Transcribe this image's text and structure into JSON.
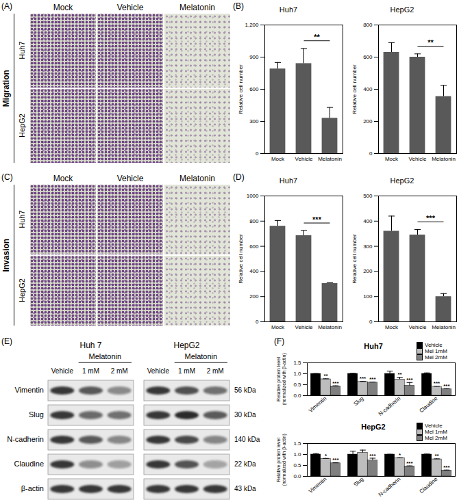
{
  "chart_data": [
    {
      "type": "bar",
      "title": "Huh7",
      "categories": [
        "Mock",
        "Vehicle",
        "Melatonin"
      ],
      "values": [
        790,
        840,
        330
      ],
      "errors": [
        60,
        140,
        100
      ],
      "color": "#595959",
      "y_label": "Relative cell number",
      "ylim": [
        0,
        1200
      ],
      "yticks": [
        0,
        300,
        600,
        900,
        {
          "value": 1200,
          "label": "1,200"
        }
      ],
      "significance": [
        {
          "from": "Vehicle",
          "to": "Melatonin",
          "label": "**"
        }
      ]
    },
    {
      "type": "bar",
      "title": "HepG2",
      "categories": [
        "Mock",
        "Vehicle",
        "Melatonin"
      ],
      "values": [
        630,
        600,
        355
      ],
      "errors": [
        60,
        20,
        70
      ],
      "color": "#595959",
      "y_label": "Relative cell number",
      "ylim": [
        0,
        800
      ],
      "yticks": [
        0,
        200,
        400,
        600,
        800
      ],
      "significance": [
        {
          "from": "Vehicle",
          "to": "Melatonin",
          "label": "**"
        }
      ]
    },
    {
      "type": "bar",
      "title": "Huh7",
      "categories": [
        "Mock",
        "Vehicle",
        "Melatonin"
      ],
      "values": [
        760,
        685,
        305
      ],
      "errors": [
        45,
        40,
        5
      ],
      "color": "#595959",
      "y_label": "Relative cell number",
      "ylim": [
        0,
        1000
      ],
      "yticks": [
        0,
        200,
        400,
        600,
        800,
        1000
      ],
      "significance": [
        {
          "from": "Vehicle",
          "to": "Melatonin",
          "label": "***"
        }
      ]
    },
    {
      "type": "bar",
      "title": "HepG2",
      "categories": [
        "Mock",
        "Vehicle",
        "Melatonin"
      ],
      "values": [
        360,
        345,
        100
      ],
      "errors": [
        60,
        22,
        12
      ],
      "color": "#595959",
      "y_label": "Relative cell number",
      "ylim": [
        0,
        500
      ],
      "yticks": [
        0,
        100,
        200,
        300,
        400,
        500
      ],
      "significance": [
        {
          "from": "Vehicle",
          "to": "Melatonin",
          "label": "***"
        }
      ]
    },
    {
      "type": "bar",
      "title": "Huh7",
      "categories": [
        "Vimentin",
        "Slug",
        "N-cadherin",
        "Claudine"
      ],
      "series": [
        {
          "name": "Vehicle",
          "color": "#000000",
          "values": [
            1.0,
            1.0,
            1.0,
            1.0
          ],
          "errors": [
            0.01,
            0.02,
            0.12,
            0.04
          ]
        },
        {
          "name": "Mel 1mM",
          "color": "#bdbdbd",
          "values": [
            0.75,
            0.63,
            0.74,
            0.41
          ],
          "errors": [
            0.02,
            0.02,
            0.1,
            0.02
          ],
          "significance": [
            "**",
            "***",
            "**",
            "***"
          ]
        },
        {
          "name": "Mel 2mM",
          "color": "#7f7f7f",
          "values": [
            0.43,
            0.6,
            0.45,
            0.3
          ],
          "errors": [
            0.02,
            0.02,
            0.15,
            0.02
          ],
          "significance": [
            "***",
            "***",
            "***",
            "***"
          ]
        }
      ],
      "y_label": "Relative protein level\n(normalized with β-actin)",
      "ylim": [
        0,
        1.5
      ],
      "yticks": [
        {
          "value": 0,
          "label": "0.0"
        },
        0.5,
        {
          "value": 1,
          "label": "1.0"
        },
        1.5
      ],
      "legend": "top-right"
    },
    {
      "type": "bar",
      "title": "HepG2",
      "categories": [
        "Vimentin",
        "Slug",
        "N-cadherin",
        "Claudine"
      ],
      "series": [
        {
          "name": "Vehicle",
          "color": "#000000",
          "values": [
            1.0,
            1.0,
            1.0,
            1.0
          ],
          "errors": [
            0.04,
            0.15,
            0.01,
            0.02
          ]
        },
        {
          "name": "Mel 1mM",
          "color": "#bdbdbd",
          "values": [
            0.8,
            1.08,
            0.84,
            0.78
          ],
          "errors": [
            0.02,
            0.12,
            0.01,
            0.02
          ],
          "significance": [
            "*",
            null,
            "*",
            "**"
          ]
        },
        {
          "name": "Mel 2mM",
          "color": "#7f7f7f",
          "values": [
            0.6,
            0.73,
            0.46,
            0.27
          ],
          "errors": [
            0.02,
            0.1,
            0.02,
            0.02
          ],
          "significance": [
            "***",
            "***",
            "***",
            "***"
          ]
        }
      ],
      "y_label": "Relative protein level\n(normalized with β-actin)",
      "ylim": [
        0,
        1.5
      ],
      "yticks": [
        {
          "value": 0,
          "label": "0.0"
        },
        0.5,
        {
          "value": 1,
          "label": "1.0"
        },
        1.5
      ],
      "legend": "top-right"
    }
  ],
  "figure": {
    "panel_labels": [
      "(A)",
      "(B)",
      "(C)",
      "(D)",
      "(E)",
      "(F)"
    ],
    "migration": {
      "side_label": "Migration",
      "rows": [
        "Huh7",
        "HepG2"
      ],
      "columns": [
        "Mock",
        "Vehicle",
        "Melatonin"
      ]
    },
    "invasion": {
      "side_label": "Invasion",
      "rows": [
        "Huh7",
        "HepG2"
      ],
      "columns": [
        "Mock",
        "Vehicle",
        "Melatonin"
      ]
    },
    "blot": {
      "cell_lines": [
        "Huh 7",
        "HepG2"
      ],
      "treatment": "Melatonin",
      "lanes": [
        "Vehicle",
        "1 mM",
        "2 mM"
      ],
      "proteins": [
        {
          "name": "Vimentin",
          "size": "56 kDa"
        },
        {
          "name": "Slug",
          "size": "30 kDa"
        },
        {
          "name": "N-cadherin",
          "size": "140 kDa"
        },
        {
          "name": "Claudine",
          "size": "22 kDa"
        },
        {
          "name": "β-actin",
          "size": "43 kDa"
        }
      ]
    }
  }
}
